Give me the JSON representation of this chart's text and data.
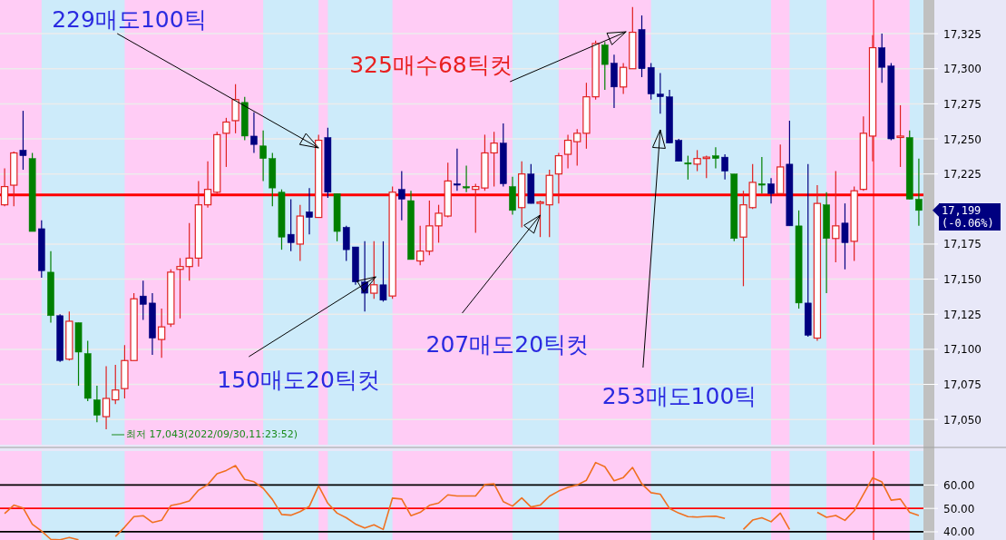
{
  "chart_data": [
    {
      "type": "candlestick",
      "categories": [
        null,
        null,
        null,
        null,
        null,
        null,
        null,
        null,
        null,
        null,
        null,
        null,
        null,
        null,
        null,
        null,
        null,
        null,
        null,
        null,
        null,
        null,
        null,
        null,
        null,
        null,
        null,
        null,
        null,
        null,
        null,
        null,
        null,
        null,
        null,
        null,
        null,
        null,
        null,
        null,
        null,
        null,
        null,
        null,
        null,
        null,
        null,
        null,
        null,
        null,
        null,
        null,
        null,
        null,
        null,
        null,
        null,
        null,
        null,
        null,
        null,
        null,
        null,
        null,
        null,
        null,
        null,
        null,
        null,
        null,
        null,
        null,
        null,
        null,
        null,
        null,
        null,
        null,
        null,
        null,
        null,
        null,
        null,
        null,
        null,
        null,
        null,
        null,
        null,
        null,
        null,
        null,
        null,
        null,
        null,
        null,
        null,
        null,
        null,
        null
      ],
      "ohlc": [
        [
          17203,
          17229,
          17202,
          17216
        ],
        [
          17217,
          17241,
          17202,
          17240
        ],
        [
          17242,
          17270,
          17228,
          17238
        ],
        [
          17236,
          17240,
          17184,
          17184
        ],
        [
          17186,
          17192,
          17151,
          17156
        ],
        [
          17155,
          17170,
          17119,
          17124
        ],
        [
          17124,
          17125,
          17091,
          17092
        ],
        [
          17093,
          17127,
          17092,
          17120
        ],
        [
          17119,
          17119,
          17074,
          17098
        ],
        [
          17097,
          17106,
          17063,
          17065
        ],
        [
          17064,
          17074,
          17048,
          17053
        ],
        [
          17052,
          17088,
          17043,
          17065
        ],
        [
          17064,
          17089,
          17061,
          17071
        ],
        [
          17072,
          17103,
          17065,
          17092
        ],
        [
          17092,
          17140,
          17092,
          17136
        ],
        [
          17138,
          17149,
          17121,
          17132
        ],
        [
          17133,
          17140,
          17096,
          17108
        ],
        [
          17107,
          17129,
          17094,
          17116
        ],
        [
          17118,
          17157,
          17116,
          17155
        ],
        [
          17157,
          17165,
          17122,
          17159
        ],
        [
          17159,
          17190,
          17149,
          17165
        ],
        [
          17165,
          17220,
          17159,
          17203
        ],
        [
          17203,
          17234,
          17201,
          17214
        ],
        [
          17212,
          17255,
          17211,
          17253
        ],
        [
          17254,
          17265,
          17230,
          17262
        ],
        [
          17263,
          17289,
          17254,
          17278
        ],
        [
          17276,
          17280,
          17249,
          17252
        ],
        [
          17252,
          17269,
          17240,
          17246
        ],
        [
          17245,
          17256,
          17220,
          17236
        ],
        [
          17236,
          17240,
          17202,
          17215
        ],
        [
          17212,
          17214,
          17171,
          17180
        ],
        [
          17182,
          17207,
          17170,
          17176
        ],
        [
          17175,
          17203,
          17163,
          17195
        ],
        [
          17198,
          17215,
          17182,
          17194
        ],
        [
          17194,
          17253,
          17194,
          17249
        ],
        [
          17251,
          17258,
          17208,
          17212
        ],
        [
          17211,
          17211,
          17177,
          17184
        ],
        [
          17187,
          17188,
          17163,
          17171
        ],
        [
          17173,
          17173,
          17146,
          17148
        ],
        [
          17148,
          17177,
          17127,
          17140
        ],
        [
          17140,
          17177,
          17136,
          17146
        ],
        [
          17146,
          17177,
          17134,
          17135
        ],
        [
          17138,
          17216,
          17136,
          17212
        ],
        [
          17214,
          17227,
          17192,
          17207
        ],
        [
          17206,
          17213,
          17164,
          17164
        ],
        [
          17163,
          17188,
          17160,
          17170
        ],
        [
          17170,
          17206,
          17167,
          17188
        ],
        [
          17188,
          17203,
          17176,
          17197
        ],
        [
          17195,
          17233,
          17194,
          17220
        ],
        [
          17218,
          17243,
          17213,
          17217
        ],
        [
          17216,
          17231,
          17212,
          17215
        ],
        [
          17214,
          17218,
          17183,
          17216
        ],
        [
          17215,
          17253,
          17213,
          17240
        ],
        [
          17240,
          17255,
          17216,
          17247
        ],
        [
          17247,
          17261,
          17216,
          17218
        ],
        [
          17216,
          17223,
          17196,
          17199
        ],
        [
          17201,
          17234,
          17187,
          17225
        ],
        [
          17225,
          17232,
          17204,
          17204
        ],
        [
          17204,
          17206,
          17180,
          17205
        ],
        [
          17203,
          17228,
          17180,
          17224
        ],
        [
          17225,
          17240,
          17204,
          17238
        ],
        [
          17239,
          17253,
          17229,
          17249
        ],
        [
          17248,
          17257,
          17231,
          17254
        ],
        [
          17254,
          17290,
          17243,
          17280
        ],
        [
          17280,
          17320,
          17278,
          17318
        ],
        [
          17317,
          17319,
          17285,
          17303
        ],
        [
          17304,
          17310,
          17272,
          17287
        ],
        [
          17287,
          17304,
          17282,
          17301
        ],
        [
          17300,
          17344,
          17300,
          17326
        ],
        [
          17328,
          17338,
          17294,
          17300
        ],
        [
          17301,
          17304,
          17278,
          17282
        ],
        [
          17282,
          17297,
          17268,
          17280
        ],
        [
          17280,
          17285,
          17247,
          17247
        ],
        [
          17249,
          17250,
          17234,
          17234
        ],
        [
          17233,
          17238,
          17221,
          17232
        ],
        [
          17232,
          17242,
          17227,
          17236
        ],
        [
          17236,
          17238,
          17222,
          17237
        ],
        [
          17238,
          17244,
          17229,
          17236
        ],
        [
          17237,
          17239,
          17221,
          17227
        ],
        [
          17225,
          17225,
          17177,
          17179
        ],
        [
          17180,
          17213,
          17145,
          17203
        ],
        [
          17201,
          17232,
          17200,
          17219
        ],
        [
          17218,
          17237,
          17211,
          17217
        ],
        [
          17218,
          17222,
          17204,
          17211
        ],
        [
          17211,
          17246,
          17211,
          17230
        ],
        [
          17232,
          17263,
          17188,
          17188
        ],
        [
          17188,
          17199,
          17129,
          17133
        ],
        [
          17133,
          17232,
          17109,
          17110
        ],
        [
          17108,
          17217,
          17106,
          17204
        ],
        [
          17203,
          17212,
          17140,
          17179
        ],
        [
          17179,
          17227,
          17162,
          17188
        ],
        [
          17190,
          17204,
          17157,
          17176
        ],
        [
          17177,
          17216,
          17163,
          17213
        ],
        [
          17214,
          17266,
          17213,
          17254
        ],
        [
          17252,
          17324,
          17234,
          17315
        ],
        [
          17315,
          17325,
          17290,
          17301
        ],
        [
          17302,
          17304,
          17249,
          17250
        ],
        [
          17251,
          17274,
          17230,
          17252
        ],
        [
          17251,
          17256,
          17207,
          17207
        ],
        [
          17207,
          17236,
          17188,
          17199
        ]
      ],
      "colors": [
        "#e02020",
        "#e02020",
        "#000080",
        "#008000",
        "#000080",
        "#008000",
        "#000080",
        "#e02020",
        "#008000",
        "#008000",
        "#008000",
        "#e02020",
        "#e02020",
        "#e02020",
        "#e02020",
        "#000080",
        "#000080",
        "#e02020",
        "#e02020",
        "#e02020",
        "#e02020",
        "#e02020",
        "#e02020",
        "#e02020",
        "#e02020",
        "#e02020",
        "#008000",
        "#000080",
        "#008000",
        "#008000",
        "#008000",
        "#000080",
        "#e02020",
        "#000080",
        "#e02020",
        "#000080",
        "#008000",
        "#000080",
        "#000080",
        "#000080",
        "#e02020",
        "#000080",
        "#e02020",
        "#000080",
        "#008000",
        "#e02020",
        "#e02020",
        "#e02020",
        "#e02020",
        "#000080",
        "#008000",
        "#e02020",
        "#e02020",
        "#e02020",
        "#000080",
        "#008000",
        "#e02020",
        "#000080",
        "#e02020",
        "#e02020",
        "#e02020",
        "#e02020",
        "#e02020",
        "#e02020",
        "#e02020",
        "#008000",
        "#000080",
        "#e02020",
        "#e02020",
        "#000080",
        "#000080",
        "#000080",
        "#000080",
        "#000080",
        "#008000",
        "#e02020",
        "#e02020",
        "#008000",
        "#000080",
        "#008000",
        "#e02020",
        "#e02020",
        "#008000",
        "#000080",
        "#e02020",
        "#000080",
        "#008000",
        "#000080",
        "#e02020",
        "#008000",
        "#e02020",
        "#000080",
        "#e02020",
        "#e02020",
        "#e02020",
        "#000080",
        "#000080",
        "#e02020",
        "#008000",
        "#008000"
      ],
      "ylim": [
        17032,
        17349
      ],
      "yticks": [
        {
          "value": 17050,
          "label": "17,050"
        },
        {
          "value": 17075,
          "label": "17,075"
        },
        {
          "value": 17100,
          "label": "17,100"
        },
        {
          "value": 17125,
          "label": "17,125"
        },
        {
          "value": 17150,
          "label": "17,150"
        },
        {
          "value": 17175,
          "label": "17,175"
        },
        {
          "value": 17225,
          "label": "17,225"
        },
        {
          "value": 17250,
          "label": "17,250"
        },
        {
          "value": 17275,
          "label": "17,275"
        },
        {
          "value": 17300,
          "label": "17,300"
        },
        {
          "value": 17325,
          "label": "17,325"
        }
      ],
      "tick_labels": "y",
      "grid": "y",
      "ref_lines": [
        {
          "axis": "y",
          "value": 17210,
          "color": "#ff0000"
        }
      ],
      "annotations": [
        "229매도100틱",
        "325매수68틱컷",
        "150매도20틱컷",
        "207매도20틱컷",
        "253매도100틱",
        "최저 17,043(2022/09/30,11:23:52)",
        "17,199 (-0.06%)"
      ]
    },
    {
      "type": "line",
      "categories": [
        null,
        null,
        null,
        null,
        null,
        null,
        null,
        null,
        null,
        null,
        null,
        null,
        null,
        null,
        null,
        null,
        null,
        null,
        null,
        null,
        null,
        null,
        null,
        null,
        null,
        null,
        null,
        null,
        null,
        null,
        null,
        null,
        null,
        null,
        null,
        null,
        null,
        null,
        null,
        null,
        null,
        null,
        null,
        null,
        null,
        null,
        null,
        null,
        null,
        null,
        null,
        null,
        null,
        null,
        null,
        null,
        null,
        null,
        null,
        null,
        null,
        null,
        null,
        null,
        null,
        null,
        null,
        null,
        null,
        null,
        null,
        null,
        null,
        null,
        null,
        null,
        null,
        null,
        null,
        null,
        null,
        null,
        null,
        null,
        null,
        null,
        null,
        null,
        null,
        null,
        null,
        null,
        null,
        null,
        null,
        null,
        null,
        null,
        null,
        null
      ],
      "ylim": [
        36.5,
        74.5
      ],
      "series": [
        {
          "color": "#f07020",
          "values": [
            47.8,
            51.4,
            50.2,
            43.2,
            40.3,
            36.8,
            36.6,
            37.6,
            36.6,
            null,
            null,
            null,
            38.0,
            42.0,
            46.5,
            46.9,
            44.0,
            44.9,
            51.2,
            52.0,
            53.2,
            57.8,
            60.2,
            64.8,
            66.2,
            68.3,
            62.4,
            61.4,
            58.6,
            53.8,
            47.4,
            47.1,
            48.6,
            50.9,
            59.6,
            52.2,
            48.0,
            46.0,
            43.3,
            41.6,
            43.0,
            41.0,
            54.4,
            54.0,
            46.9,
            48.3,
            51.3,
            52.3,
            55.8,
            55.3,
            55.3,
            55.3,
            60.2,
            60.5,
            52.9,
            51.0,
            54.5,
            50.6,
            51.4,
            55.2,
            57.4,
            59.0,
            60.0,
            62.0,
            69.6,
            67.8,
            61.8,
            63.2,
            67.5,
            60.5,
            56.7,
            56.1,
            50.0,
            48.0,
            46.5,
            46.3,
            46.6,
            46.7,
            45.7,
            null,
            41.0,
            45.0,
            46.0,
            44.3,
            48.0,
            41.0,
            null,
            null,
            48.3,
            46.2,
            47.0,
            44.9,
            49.0,
            56.0,
            63.1,
            61.3,
            53.5,
            54.0,
            48.3,
            47.0
          ]
        }
      ],
      "yticks": [
        {
          "value": 40,
          "label": "40.00"
        },
        {
          "value": 50,
          "label": "50.00"
        },
        {
          "value": 60,
          "label": "60.00"
        }
      ],
      "tick_labels": "y",
      "ref_lines": [
        {
          "axis": "y",
          "value": 60,
          "color": "#000000"
        },
        {
          "axis": "y",
          "value": 50,
          "color": "#ff0000"
        },
        {
          "axis": "y",
          "value": 40,
          "color": "#000000"
        }
      ]
    }
  ]
}
